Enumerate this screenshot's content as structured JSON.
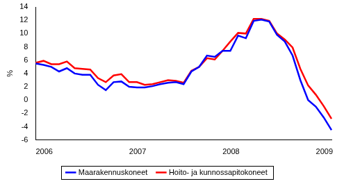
{
  "chart_data": {
    "type": "line",
    "ylabel": "%",
    "categories": [
      "2006",
      null,
      null,
      null,
      null,
      null,
      null,
      null,
      null,
      null,
      null,
      null,
      "2007",
      null,
      null,
      null,
      null,
      null,
      null,
      null,
      null,
      null,
      null,
      null,
      "2008",
      null,
      null,
      null,
      null,
      null,
      null,
      null,
      null,
      null,
      null,
      null,
      "2009",
      null,
      null
    ],
    "series": [
      {
        "name": "Maarakennuskoneet",
        "color": "#0000ff",
        "values": [
          5.5,
          5.3,
          5.0,
          4.3,
          4.8,
          4.0,
          3.8,
          3.8,
          2.3,
          1.5,
          2.7,
          2.8,
          2.0,
          1.9,
          1.9,
          2.1,
          2.4,
          2.6,
          2.7,
          2.4,
          4.3,
          5.0,
          6.7,
          6.5,
          7.4,
          7.4,
          9.7,
          9.3,
          11.9,
          12.1,
          11.8,
          9.8,
          8.8,
          6.7,
          3.0,
          0.0,
          -1.0,
          -2.6,
          -4.5
        ]
      },
      {
        "name": "Hoito- ja kunnossapitokoneet",
        "color": "#ff0000",
        "values": [
          5.6,
          5.9,
          5.4,
          5.4,
          5.8,
          4.8,
          4.7,
          4.6,
          3.3,
          2.7,
          3.7,
          3.9,
          2.7,
          2.7,
          2.3,
          2.4,
          2.7,
          3.0,
          2.9,
          2.6,
          4.4,
          5.0,
          6.3,
          6.1,
          7.4,
          8.8,
          10.1,
          10.0,
          12.2,
          12.2,
          11.9,
          10.0,
          9.1,
          7.9,
          4.7,
          2.2,
          0.8,
          -0.9,
          -2.8
        ]
      }
    ],
    "ylim": [
      -6,
      14
    ],
    "yticks": [
      -6,
      -4,
      -2,
      0,
      2,
      4,
      6,
      8,
      10,
      12,
      14
    ],
    "grid": false,
    "legend": "bottom"
  }
}
